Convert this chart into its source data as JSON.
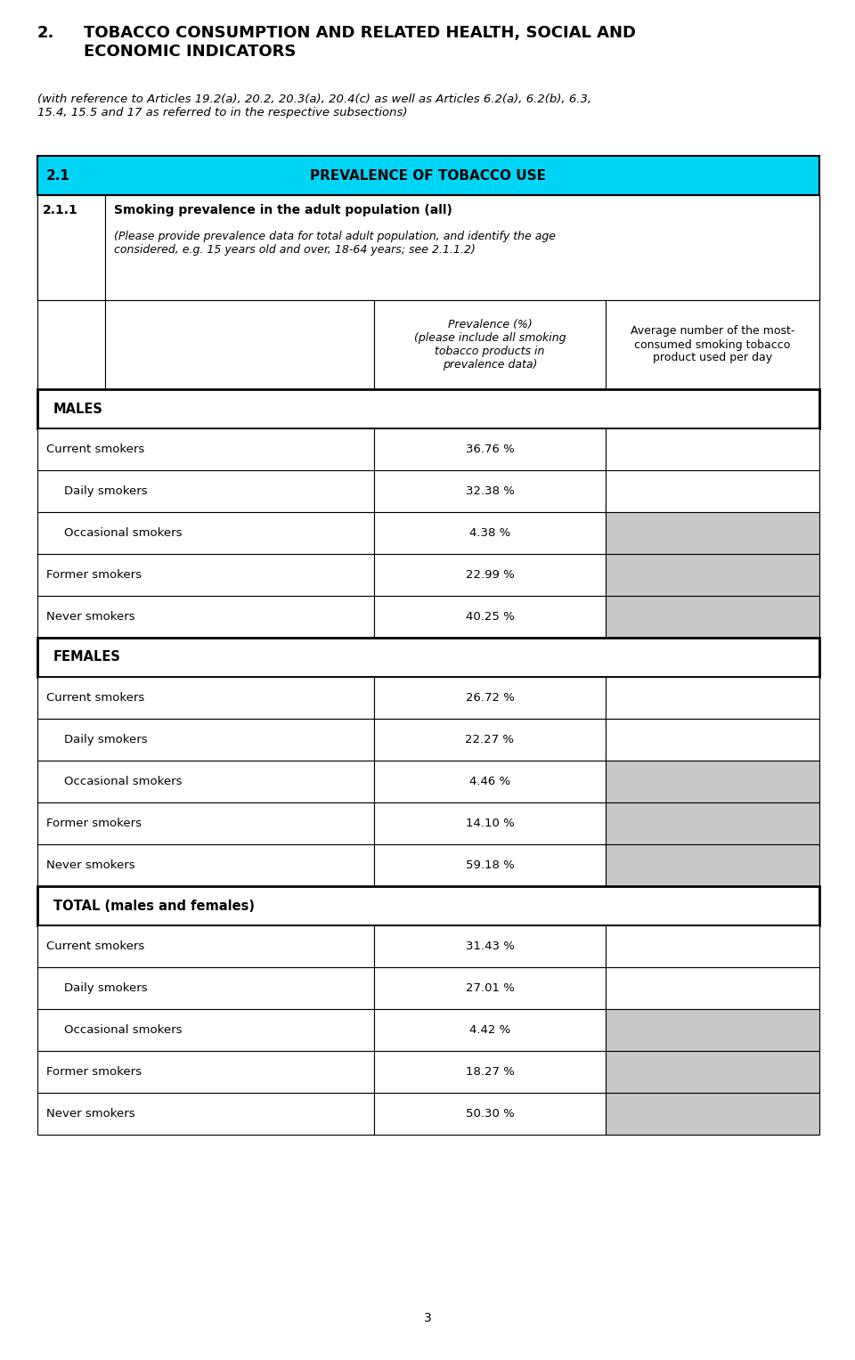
{
  "page_num": "3",
  "heading_num": "2.",
  "heading_text": "TOBACCO CONSUMPTION AND RELATED HEALTH, SOCIAL AND\nECONOMIC INDICATORS",
  "subheading_italic": "(with reference to Articles 19.2(a), 20.2, 20.3(a), 20.4(c) as well as Articles 6.2(a), 6.2(b), 6.3,\n15.4, 15.5 and 17 as referred to in the respective subsections)",
  "section_num": "2.1",
  "section_title": "PREVALENCE OF TOBACCO USE",
  "subsection_num": "2.1.1",
  "subsection_title_bold": "Smoking prevalence in the adult population (all)",
  "subsection_italic": "(Please provide prevalence data for total adult population, and identify the age\nconsidered, e.g. 15 years old and over, 18-64 years; see 2.1.1.2)",
  "col_header_left": "Prevalence (%)\n(please include all smoking\ntobacco products in\nprevalence data)",
  "col_header_right": "Average number of the most-\nconsumed smoking tobacco\nproduct used per day",
  "groups": [
    {
      "name": "MALES",
      "rows": [
        {
          "label": "Current smokers",
          "value": "36.76 %",
          "grey_right": false,
          "indent": false
        },
        {
          "label": "Daily smokers",
          "value": "32.38 %",
          "grey_right": false,
          "indent": true
        },
        {
          "label": "Occasional smokers",
          "value": "4.38 %",
          "grey_right": true,
          "indent": true
        },
        {
          "label": "Former smokers",
          "value": "22.99 %",
          "grey_right": true,
          "indent": false
        },
        {
          "label": "Never smokers",
          "value": "40.25 %",
          "grey_right": true,
          "indent": false
        }
      ]
    },
    {
      "name": "FEMALES",
      "rows": [
        {
          "label": "Current smokers",
          "value": "26.72 %",
          "grey_right": false,
          "indent": false
        },
        {
          "label": "Daily smokers",
          "value": "22.27 %",
          "grey_right": false,
          "indent": true
        },
        {
          "label": "Occasional smokers",
          "value": "4.46 %",
          "grey_right": true,
          "indent": true
        },
        {
          "label": "Former smokers",
          "value": "14.10 %",
          "grey_right": true,
          "indent": false
        },
        {
          "label": "Never smokers",
          "value": "59.18 %",
          "grey_right": true,
          "indent": false
        }
      ]
    },
    {
      "name": "TOTAL (males and females)",
      "rows": [
        {
          "label": "Current smokers",
          "value": "31.43 %",
          "grey_right": false,
          "indent": false
        },
        {
          "label": "Daily smokers",
          "value": "27.01 %",
          "grey_right": false,
          "indent": true
        },
        {
          "label": "Occasional smokers",
          "value": "4.42 %",
          "grey_right": true,
          "indent": true
        },
        {
          "label": "Former smokers",
          "value": "18.27 %",
          "grey_right": true,
          "indent": false
        },
        {
          "label": "Never smokers",
          "value": "50.30 %",
          "grey_right": true,
          "indent": false
        }
      ]
    }
  ],
  "grey_color": "#C8C8C8",
  "cyan_color": "#00D4F5",
  "fig_w": 9.6,
  "fig_h": 15.27,
  "dpi": 100
}
